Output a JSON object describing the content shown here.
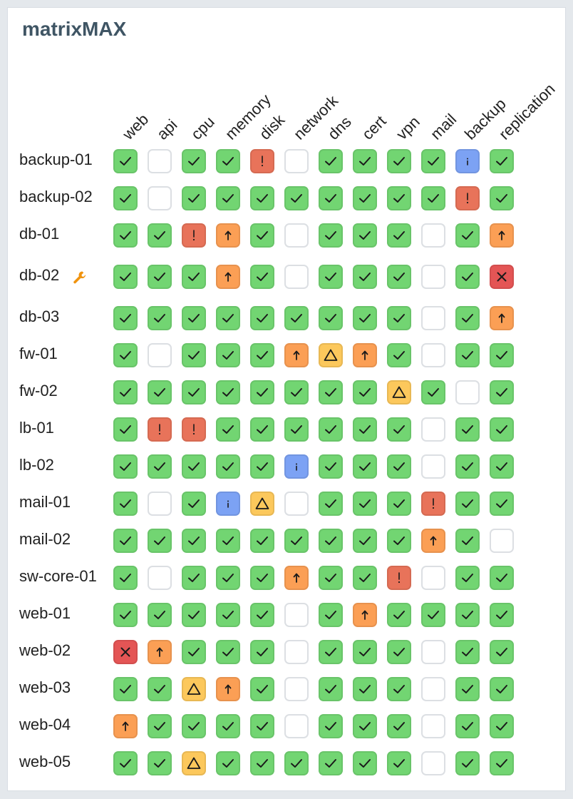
{
  "app": {
    "title": "matrixMAX"
  },
  "columns": [
    "web",
    "api",
    "cpu",
    "memory",
    "disk",
    "network",
    "dns",
    "cert",
    "vpn",
    "mail",
    "backup",
    "replication"
  ],
  "status_legend": {
    "ok": {
      "icon": "check-icon",
      "color": "#72d572"
    },
    "empty": {
      "icon": "none",
      "color": "#ffffff"
    },
    "error": {
      "icon": "exclamation-icon",
      "color": "#e8735a"
    },
    "info": {
      "icon": "info-icon",
      "color": "#7ca2f4"
    },
    "up": {
      "icon": "arrow-up-icon",
      "color": "#fb9f55"
    },
    "warn": {
      "icon": "warning-triangle-icon",
      "color": "#fcc85c"
    },
    "crit": {
      "icon": "x-icon",
      "color": "#e45555"
    }
  },
  "rows": [
    {
      "name": "backup-01",
      "maintenance": false,
      "cells": [
        "ok",
        "empty",
        "ok",
        "ok",
        "error",
        "empty",
        "ok",
        "ok",
        "ok",
        "ok",
        "info",
        "ok"
      ]
    },
    {
      "name": "backup-02",
      "maintenance": false,
      "cells": [
        "ok",
        "empty",
        "ok",
        "ok",
        "ok",
        "ok",
        "ok",
        "ok",
        "ok",
        "ok",
        "error",
        "ok"
      ]
    },
    {
      "name": "db-01",
      "maintenance": false,
      "cells": [
        "ok",
        "ok",
        "error",
        "up",
        "ok",
        "empty",
        "ok",
        "ok",
        "ok",
        "empty",
        "ok",
        "up"
      ]
    },
    {
      "name": "db-02",
      "maintenance": true,
      "cells": [
        "ok",
        "ok",
        "ok",
        "up",
        "ok",
        "empty",
        "ok",
        "ok",
        "ok",
        "empty",
        "ok",
        "crit"
      ]
    },
    {
      "name": "db-03",
      "maintenance": false,
      "cells": [
        "ok",
        "ok",
        "ok",
        "ok",
        "ok",
        "ok",
        "ok",
        "ok",
        "ok",
        "empty",
        "ok",
        "up"
      ]
    },
    {
      "name": "fw-01",
      "maintenance": false,
      "cells": [
        "ok",
        "empty",
        "ok",
        "ok",
        "ok",
        "up",
        "warn",
        "up",
        "ok",
        "empty",
        "ok",
        "ok"
      ]
    },
    {
      "name": "fw-02",
      "maintenance": false,
      "cells": [
        "ok",
        "ok",
        "ok",
        "ok",
        "ok",
        "ok",
        "ok",
        "ok",
        "warn",
        "ok",
        "empty",
        "ok"
      ]
    },
    {
      "name": "lb-01",
      "maintenance": false,
      "cells": [
        "ok",
        "error",
        "error",
        "ok",
        "ok",
        "ok",
        "ok",
        "ok",
        "ok",
        "empty",
        "ok",
        "ok"
      ]
    },
    {
      "name": "lb-02",
      "maintenance": false,
      "cells": [
        "ok",
        "ok",
        "ok",
        "ok",
        "ok",
        "info",
        "ok",
        "ok",
        "ok",
        "empty",
        "ok",
        "ok"
      ]
    },
    {
      "name": "mail-01",
      "maintenance": false,
      "cells": [
        "ok",
        "empty",
        "ok",
        "info",
        "warn",
        "empty",
        "ok",
        "ok",
        "ok",
        "error",
        "ok",
        "ok"
      ]
    },
    {
      "name": "mail-02",
      "maintenance": false,
      "cells": [
        "ok",
        "ok",
        "ok",
        "ok",
        "ok",
        "ok",
        "ok",
        "ok",
        "ok",
        "up",
        "ok",
        "empty"
      ]
    },
    {
      "name": "sw-core-01",
      "maintenance": false,
      "cells": [
        "ok",
        "empty",
        "ok",
        "ok",
        "ok",
        "up",
        "ok",
        "ok",
        "error",
        "empty",
        "ok",
        "ok"
      ]
    },
    {
      "name": "web-01",
      "maintenance": false,
      "cells": [
        "ok",
        "ok",
        "ok",
        "ok",
        "ok",
        "empty",
        "ok",
        "up",
        "ok",
        "ok",
        "ok",
        "ok"
      ]
    },
    {
      "name": "web-02",
      "maintenance": false,
      "cells": [
        "crit",
        "up",
        "ok",
        "ok",
        "ok",
        "empty",
        "ok",
        "ok",
        "ok",
        "empty",
        "ok",
        "ok"
      ]
    },
    {
      "name": "web-03",
      "maintenance": false,
      "cells": [
        "ok",
        "ok",
        "warn",
        "up",
        "ok",
        "empty",
        "ok",
        "ok",
        "ok",
        "empty",
        "ok",
        "ok"
      ]
    },
    {
      "name": "web-04",
      "maintenance": false,
      "cells": [
        "up",
        "ok",
        "ok",
        "ok",
        "ok",
        "empty",
        "ok",
        "ok",
        "ok",
        "empty",
        "ok",
        "ok"
      ]
    },
    {
      "name": "web-05",
      "maintenance": false,
      "cells": [
        "ok",
        "ok",
        "warn",
        "ok",
        "ok",
        "ok",
        "ok",
        "ok",
        "ok",
        "empty",
        "ok",
        "ok"
      ]
    }
  ]
}
